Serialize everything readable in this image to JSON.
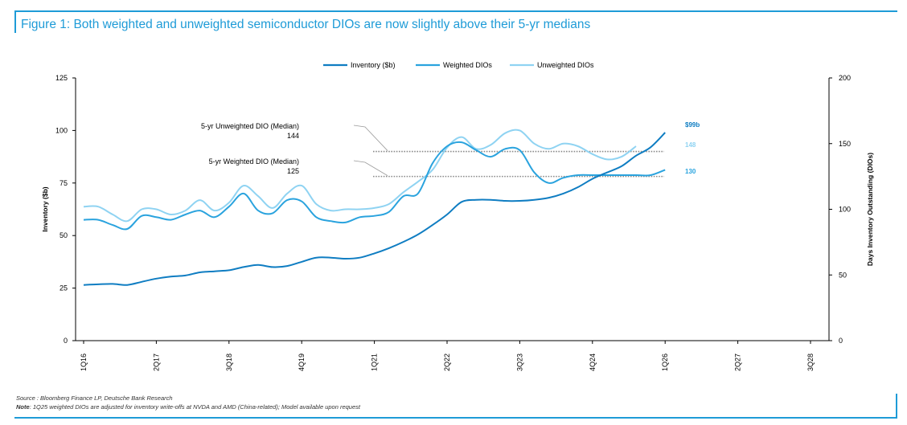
{
  "title": "Figure 1: Both weighted and unweighted semiconductor DIOs are now slightly above their 5-yr medians",
  "source": "Source : Bloomberg Finance LP, Deutsche Bank Research",
  "note_label": "Note",
  "note_text": ": 1Q25 weighted DIOs are adjusted for inventory write-offs at NVDA and AMD (China-related); Model available upon request",
  "colors": {
    "inventory": "#0f7dc2",
    "weighted": "#2aa3de",
    "unweighted": "#8fd3f2",
    "accent": "#1e9bd7",
    "median": "#8a8a8a"
  },
  "chart_data": {
    "type": "line",
    "ylabel": "Inventory ($b)",
    "y2label": "Days Inventory Outstanding (DIOs)",
    "ylim": [
      0,
      125
    ],
    "y_ticks": [
      0,
      25,
      50,
      75,
      100,
      125
    ],
    "y2lim": [
      0,
      200
    ],
    "y2_ticks": [
      0,
      50,
      100,
      150,
      200
    ],
    "x_ticks": [
      "1Q16",
      "2Q17",
      "3Q18",
      "4Q19",
      "1Q21",
      "2Q22",
      "3Q23",
      "4Q24",
      "1Q26",
      "2Q27",
      "3Q28"
    ],
    "x_tick_index": [
      0,
      5,
      10,
      15,
      20,
      25,
      30,
      35,
      40,
      45,
      50
    ],
    "legend": [
      "Inventory ($b)",
      "Weighted DIOs",
      "Unweighted DIOs"
    ],
    "legend_position": "top-center",
    "grid": false,
    "series": [
      {
        "name": "Inventory ($b)",
        "axis": "left",
        "values": [
          26.5,
          26.8,
          27,
          26.5,
          28,
          29.5,
          30.5,
          31,
          32.5,
          33,
          33.5,
          35,
          36,
          35,
          35.5,
          37.5,
          39.5,
          39.5,
          39,
          39.5,
          41.5,
          44,
          47,
          50.5,
          55,
          60,
          66,
          67,
          67,
          66.5,
          66.5,
          67,
          68,
          70,
          73,
          77,
          80,
          83,
          88,
          92,
          99
        ]
      },
      {
        "name": "Weighted DIOs",
        "axis": "right",
        "values": [
          92,
          92,
          88,
          85,
          95,
          94,
          92,
          96,
          99,
          94,
          102,
          112,
          99,
          97,
          107,
          106,
          94,
          91,
          90,
          94,
          95,
          98,
          110,
          112,
          135,
          148,
          151,
          145,
          140,
          146,
          145,
          128,
          120,
          124,
          126,
          126,
          126,
          126,
          126,
          126,
          130
        ]
      },
      {
        "name": "Unweighted DIOs",
        "axis": "right",
        "values": [
          102,
          102,
          96,
          91,
          100,
          100,
          96,
          99,
          107,
          99,
          105,
          118,
          110,
          101,
          112,
          118,
          104,
          99,
          100,
          100,
          101,
          104,
          113,
          121,
          130,
          147,
          155,
          146,
          149,
          158,
          160,
          150,
          146,
          150,
          148,
          142,
          138,
          140,
          148
        ]
      }
    ],
    "medians": [
      {
        "label_line1": "5-yr Unweighted DIO (Median)",
        "label_line2": "144",
        "value": 144,
        "axis": "right"
      },
      {
        "label_line1": "5-yr Weighted DIO (Median)",
        "label_line2": "125",
        "value": 125,
        "axis": "right"
      }
    ],
    "end_labels": [
      {
        "text": "$99b",
        "series": "Inventory ($b)"
      },
      {
        "text": "148",
        "series": "Unweighted DIOs"
      },
      {
        "text": "130",
        "series": "Weighted DIOs"
      }
    ]
  }
}
